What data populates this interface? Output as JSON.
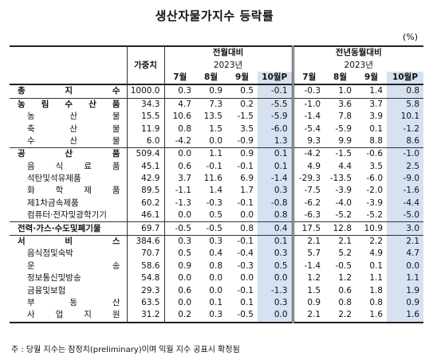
{
  "title": "생산자물가지수 등락률",
  "unit": "(%)",
  "header": {
    "weight": "가중치",
    "mom": "전월대비",
    "yoy": "전년동월대비",
    "year": "2023년",
    "months": [
      "7월",
      "8월",
      "9월",
      "10월P"
    ]
  },
  "rows": [
    {
      "label": "총 지 수",
      "bold": true,
      "weight": "1000.0",
      "mom": [
        "0.3",
        "0.9",
        "0.5",
        "-0.1"
      ],
      "yoy": [
        "-0.3",
        "1.0",
        "1.4",
        "0.8"
      ]
    },
    {
      "label": "농 림 수 산 품",
      "bold": true,
      "weight": "34.3",
      "mom": [
        "4.7",
        "7.3",
        "0.2",
        "-5.5"
      ],
      "yoy": [
        "-1.0",
        "3.6",
        "3.7",
        "5.8"
      ]
    },
    {
      "label": "농 산 물",
      "bold": false,
      "weight": "15.5",
      "mom": [
        "10.6",
        "13.5",
        "-1.5",
        "-5.9"
      ],
      "yoy": [
        "-1.4",
        "7.8",
        "3.9",
        "10.1"
      ]
    },
    {
      "label": "축 산 물",
      "bold": false,
      "weight": "11.9",
      "mom": [
        "0.8",
        "1.5",
        "3.5",
        "-6.0"
      ],
      "yoy": [
        "-5.4",
        "-5.9",
        "0.1",
        "-1.2"
      ]
    },
    {
      "label": "수 산 물",
      "bold": false,
      "weight": "6.0",
      "mom": [
        "-4.2",
        "0.0",
        "-0.9",
        "1.3"
      ],
      "yoy": [
        "9.3",
        "9.9",
        "8.8",
        "8.6"
      ]
    },
    {
      "label": "공 산 품",
      "bold": true,
      "weight": "509.4",
      "mom": [
        "0.0",
        "1.1",
        "0.9",
        "0.1"
      ],
      "yoy": [
        "-4.2",
        "-1.5",
        "-0.6",
        "-1.0"
      ]
    },
    {
      "label": "음 식 료 품",
      "bold": false,
      "weight": "45.1",
      "mom": [
        "0.6",
        "-0.1",
        "-0.1",
        "0.1"
      ],
      "yoy": [
        "4.9",
        "4.4",
        "3.5",
        "2.5"
      ]
    },
    {
      "label": "석탄및석유제품",
      "bold": false,
      "weight": "42.9",
      "mom": [
        "3.7",
        "11.6",
        "6.9",
        "-1.4"
      ],
      "yoy": [
        "-29.3",
        "-13.5",
        "-6.0",
        "-9.0"
      ]
    },
    {
      "label": "화 학 제 품",
      "bold": false,
      "weight": "89.5",
      "mom": [
        "-1.1",
        "1.4",
        "1.7",
        "0.3"
      ],
      "yoy": [
        "-7.5",
        "-3.9",
        "-2.0",
        "-1.6"
      ]
    },
    {
      "label": "제1차금속제품",
      "bold": false,
      "weight": "60.2",
      "mom": [
        "-1.3",
        "-0.3",
        "-0.1",
        "-0.8"
      ],
      "yoy": [
        "-6.2",
        "-4.0",
        "-3.9",
        "-4.4"
      ]
    },
    {
      "label": "컴퓨터·전자및광학기기",
      "bold": false,
      "weight": "46.1",
      "mom": [
        "0.0",
        "0.5",
        "0.0",
        "0.8"
      ],
      "yoy": [
        "-6.3",
        "-5.2",
        "-5.2",
        "-5.0"
      ]
    },
    {
      "label": "전력·가스·수도및폐기물",
      "bold": true,
      "weight": "69.7",
      "mom": [
        "-0.5",
        "-0.5",
        "0.8",
        "0.4"
      ],
      "yoy": [
        "17.5",
        "12.8",
        "10.9",
        "3.0"
      ]
    },
    {
      "label": "서 비 스",
      "bold": true,
      "weight": "384.6",
      "mom": [
        "0.3",
        "0.3",
        "-0.1",
        "0.1"
      ],
      "yoy": [
        "2.1",
        "2.1",
        "2.2",
        "2.1"
      ]
    },
    {
      "label": "음식점및숙박",
      "bold": false,
      "weight": "70.7",
      "mom": [
        "0.5",
        "0.4",
        "-0.4",
        "0.3"
      ],
      "yoy": [
        "5.7",
        "5.2",
        "4.9",
        "4.7"
      ]
    },
    {
      "label": "운 송",
      "bold": false,
      "weight": "58.6",
      "mom": [
        "0.9",
        "0.8",
        "-0.3",
        "0.5"
      ],
      "yoy": [
        "-1.4",
        "-0.5",
        "0.1",
        "0.0"
      ]
    },
    {
      "label": "정보통신및방송",
      "bold": false,
      "weight": "54.8",
      "mom": [
        "0.0",
        "0.0",
        "0.0",
        "0.0"
      ],
      "yoy": [
        "1.2",
        "1.2",
        "1.1",
        "1.1"
      ]
    },
    {
      "label": "금융및보험",
      "bold": false,
      "weight": "29.3",
      "mom": [
        "0.6",
        "0.0",
        "-0.1",
        "-1.3"
      ],
      "yoy": [
        "1.5",
        "0.6",
        "1.8",
        "1.9"
      ]
    },
    {
      "label": "부 동 산",
      "bold": false,
      "weight": "63.5",
      "mom": [
        "0.0",
        "0.1",
        "0.1",
        "0.3"
      ],
      "yoy": [
        "0.9",
        "0.8",
        "0.8",
        "0.9"
      ]
    },
    {
      "label": "사 업 지 원",
      "bold": false,
      "weight": "31.2",
      "mom": [
        "0.2",
        "0.3",
        "-0.5",
        "0.0"
      ],
      "yoy": [
        "2.1",
        "2.2",
        "1.6",
        "1.6"
      ]
    }
  ],
  "note": "주 : 당월 지수는 잠정치(preliminary)이며 익월 지수 공표시 확정됨"
}
